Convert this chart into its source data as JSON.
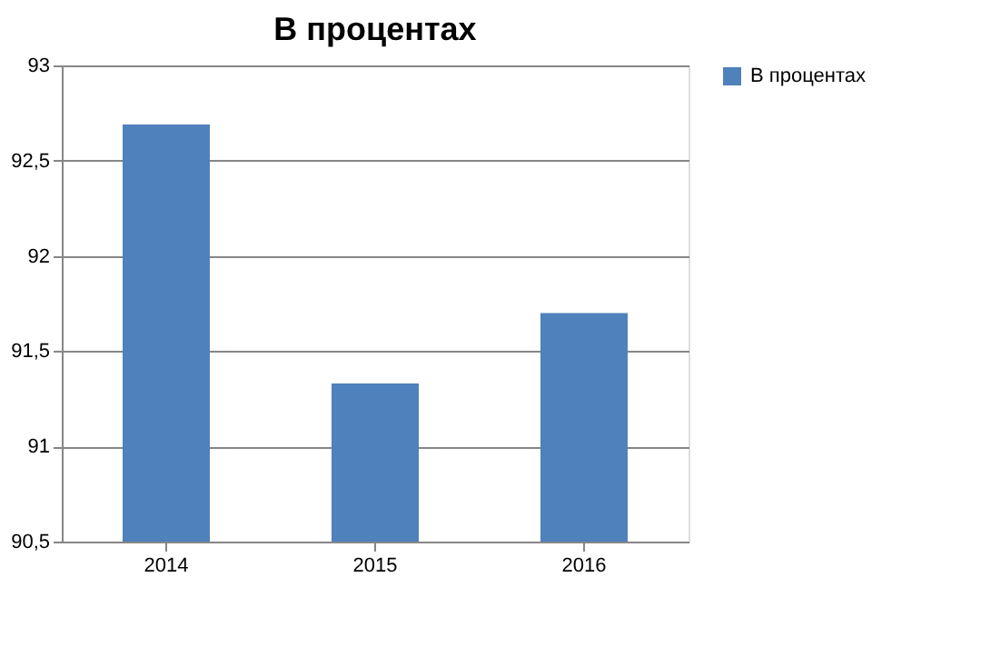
{
  "chart_data": {
    "type": "bar",
    "title": "В процентах",
    "categories": [
      "2014",
      "2015",
      "2016"
    ],
    "series": [
      {
        "name": "В процентах",
        "color": "#4f81bd",
        "values": [
          92.69,
          91.33,
          91.7
        ]
      }
    ],
    "ylim": [
      90.5,
      93
    ],
    "yticks": [
      {
        "value": 90.5,
        "label": "90,5"
      },
      {
        "value": 91,
        "label": "91"
      },
      {
        "value": 91.5,
        "label": "91,5"
      },
      {
        "value": 92,
        "label": "92"
      },
      {
        "value": 92.5,
        "label": "92,5"
      },
      {
        "value": 93,
        "label": "93"
      }
    ],
    "grid": "y",
    "legend": "right"
  }
}
